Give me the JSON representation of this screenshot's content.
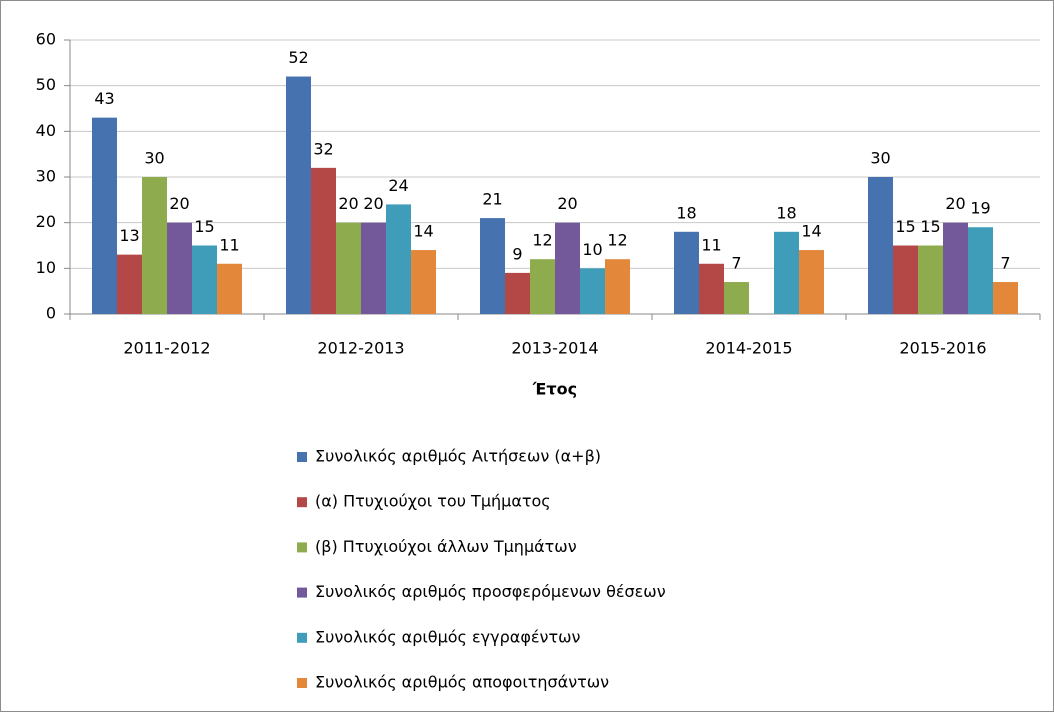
{
  "chart_data": {
    "type": "bar",
    "categories": [
      "2011-2012",
      "2012-2013",
      "2013-2014",
      "2014-2015",
      "2015-2016"
    ],
    "x_label": "Έτος",
    "series": [
      {
        "name": "Συνολικός αριθμός Αιτήσεων (α+β)",
        "color": "#4672b0",
        "values": [
          43,
          52,
          21,
          18,
          30
        ]
      },
      {
        "name": "(α) Πτυχιούχοι του Τμήματος",
        "color": "#b44846",
        "values": [
          13,
          32,
          9,
          11,
          15
        ]
      },
      {
        "name": "(β) Πτυχιούχοι άλλων Τμημάτων",
        "color": "#8eac4e",
        "values": [
          30,
          20,
          12,
          7,
          15
        ]
      },
      {
        "name": "Συνολικός αριθμός προσφερόμενων θέσεων",
        "color": "#74599a",
        "values": [
          20,
          20,
          20,
          null,
          20
        ]
      },
      {
        "name": "Συνολικός αριθμός εγγραφέντων",
        "color": "#3f9db9",
        "values": [
          15,
          24,
          10,
          18,
          19
        ]
      },
      {
        "name": "Συνολικός αριθμός αποφοιτησάντων",
        "color": "#e3873b",
        "values": [
          11,
          14,
          12,
          14,
          7
        ]
      }
    ],
    "ylim": [
      0,
      60
    ],
    "yticks": [
      0,
      10,
      20,
      30,
      40,
      50,
      60
    ],
    "grid": true,
    "legend": "bottom"
  }
}
